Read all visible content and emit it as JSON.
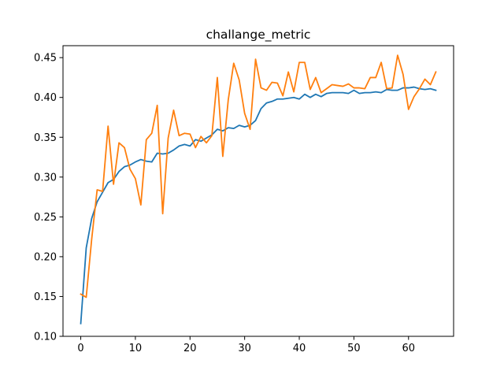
{
  "chart_data": {
    "type": "line",
    "title": "challange_metric",
    "xlabel": "",
    "ylabel": "",
    "xlim": [
      -3.25,
      68.25
    ],
    "ylim": [
      0.1,
      0.465
    ],
    "x_ticks": [
      0,
      10,
      20,
      30,
      40,
      50,
      60
    ],
    "y_ticks": [
      0.1,
      0.15,
      0.2,
      0.25,
      0.3,
      0.35,
      0.4,
      0.45
    ],
    "grid": false,
    "legend": "none",
    "series": [
      {
        "color": "#1f77b4",
        "x": [
          0,
          1,
          2,
          3,
          4,
          5,
          6,
          7,
          8,
          9,
          10,
          11,
          12,
          13,
          14,
          15,
          16,
          17,
          18,
          19,
          20,
          21,
          22,
          23,
          24,
          25,
          26,
          27,
          28,
          29,
          30,
          31,
          32,
          33,
          34,
          35,
          36,
          37,
          38,
          39,
          40,
          41,
          42,
          43,
          44,
          45,
          46,
          47,
          48,
          49,
          50,
          51,
          52,
          53,
          54,
          55,
          56,
          57,
          58,
          59,
          60,
          61,
          62,
          63,
          64,
          65
        ],
        "values": [
          0.116,
          0.211,
          0.248,
          0.269,
          0.281,
          0.293,
          0.297,
          0.307,
          0.313,
          0.315,
          0.319,
          0.322,
          0.32,
          0.319,
          0.33,
          0.329,
          0.33,
          0.334,
          0.339,
          0.341,
          0.339,
          0.347,
          0.345,
          0.349,
          0.353,
          0.36,
          0.358,
          0.362,
          0.361,
          0.365,
          0.363,
          0.365,
          0.371,
          0.386,
          0.393,
          0.395,
          0.398,
          0.398,
          0.399,
          0.4,
          0.398,
          0.404,
          0.4,
          0.404,
          0.401,
          0.405,
          0.406,
          0.406,
          0.406,
          0.405,
          0.409,
          0.405,
          0.406,
          0.406,
          0.407,
          0.406,
          0.41,
          0.409,
          0.409,
          0.412,
          0.412,
          0.413,
          0.411,
          0.41,
          0.411,
          0.409
        ]
      },
      {
        "color": "#ff7f0e",
        "x": [
          0,
          1,
          2,
          3,
          4,
          5,
          6,
          7,
          8,
          9,
          10,
          11,
          12,
          13,
          14,
          15,
          16,
          17,
          18,
          19,
          20,
          21,
          22,
          23,
          24,
          25,
          26,
          27,
          28,
          29,
          30,
          31,
          32,
          33,
          34,
          35,
          36,
          37,
          38,
          39,
          40,
          41,
          42,
          43,
          44,
          45,
          46,
          47,
          48,
          49,
          50,
          51,
          52,
          53,
          54,
          55,
          56,
          57,
          58,
          59,
          60,
          61,
          62,
          63,
          64,
          65
        ],
        "values": [
          0.153,
          0.149,
          0.222,
          0.284,
          0.282,
          0.364,
          0.291,
          0.343,
          0.337,
          0.31,
          0.298,
          0.265,
          0.347,
          0.355,
          0.39,
          0.254,
          0.349,
          0.384,
          0.352,
          0.355,
          0.354,
          0.337,
          0.351,
          0.343,
          0.352,
          0.425,
          0.326,
          0.397,
          0.443,
          0.422,
          0.38,
          0.36,
          0.448,
          0.412,
          0.409,
          0.419,
          0.418,
          0.402,
          0.432,
          0.407,
          0.444,
          0.444,
          0.41,
          0.425,
          0.406,
          0.411,
          0.416,
          0.415,
          0.414,
          0.417,
          0.412,
          0.412,
          0.411,
          0.425,
          0.425,
          0.444,
          0.411,
          0.412,
          0.453,
          0.429,
          0.385,
          0.401,
          0.411,
          0.423,
          0.416,
          0.432
        ]
      }
    ]
  }
}
